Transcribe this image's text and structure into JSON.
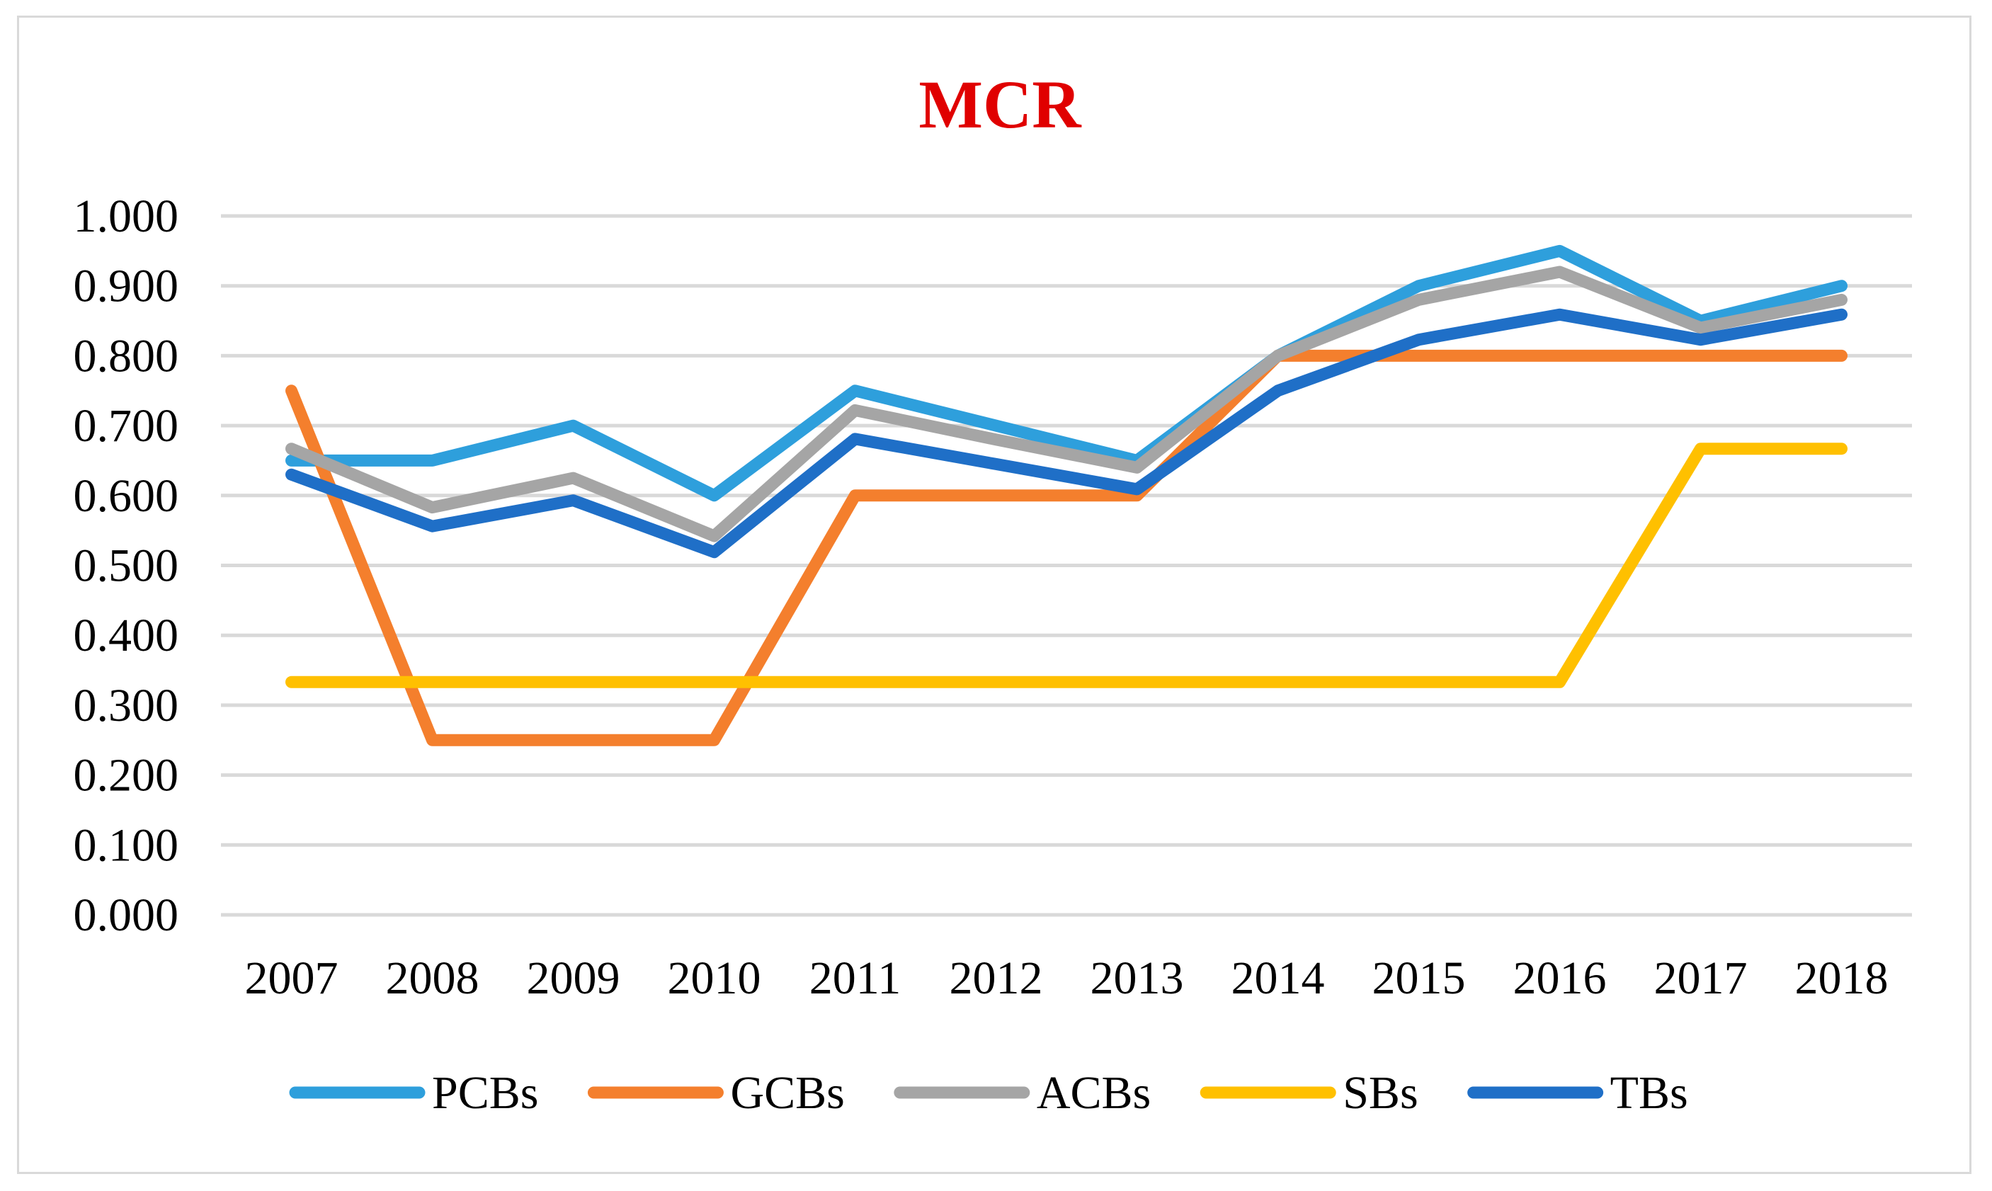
{
  "chart_data": {
    "type": "line",
    "title": "MCR",
    "title_color": "#e00000",
    "xlabel": "",
    "ylabel": "",
    "categories": [
      "2007",
      "2008",
      "2009",
      "2010",
      "2011",
      "2012",
      "2013",
      "2014",
      "2015",
      "2016",
      "2017",
      "2018"
    ],
    "ylim": [
      0,
      1
    ],
    "yticks": [
      0,
      0.1,
      0.2,
      0.3,
      0.4,
      0.5,
      0.6,
      0.7,
      0.8,
      0.9,
      1.0
    ],
    "ytick_labels": [
      "0.000",
      "0.100",
      "0.200",
      "0.300",
      "0.400",
      "0.500",
      "0.600",
      "0.700",
      "0.800",
      "0.900",
      "1.000"
    ],
    "grid": true,
    "grid_color": "#d9d9d9",
    "legend_position": "bottom",
    "series": [
      {
        "name": "PCBs",
        "color": "#2e9fdc",
        "values": [
          0.65,
          0.65,
          0.7,
          0.6,
          0.75,
          0.7,
          0.65,
          0.8,
          0.9,
          0.95,
          0.85,
          0.9
        ]
      },
      {
        "name": "GCBs",
        "color": "#f47f2d",
        "values": [
          0.75,
          0.25,
          0.25,
          0.25,
          0.6,
          0.6,
          0.6,
          0.8,
          0.8,
          0.8,
          0.8,
          0.8
        ]
      },
      {
        "name": "ACBs",
        "color": "#a5a5a5",
        "values": [
          0.667,
          0.583,
          0.625,
          0.542,
          0.722,
          0.68,
          0.64,
          0.8,
          0.88,
          0.92,
          0.84,
          0.88
        ]
      },
      {
        "name": "SBs",
        "color": "#ffc000",
        "values": [
          0.333,
          0.333,
          0.333,
          0.333,
          0.333,
          0.333,
          0.333,
          0.333,
          0.333,
          0.333,
          0.667,
          0.667
        ]
      },
      {
        "name": "TBs",
        "color": "#1f6fc7",
        "values": [
          0.63,
          0.556,
          0.593,
          0.519,
          0.681,
          0.645,
          0.609,
          0.75,
          0.823,
          0.859,
          0.823,
          0.859
        ]
      }
    ]
  }
}
